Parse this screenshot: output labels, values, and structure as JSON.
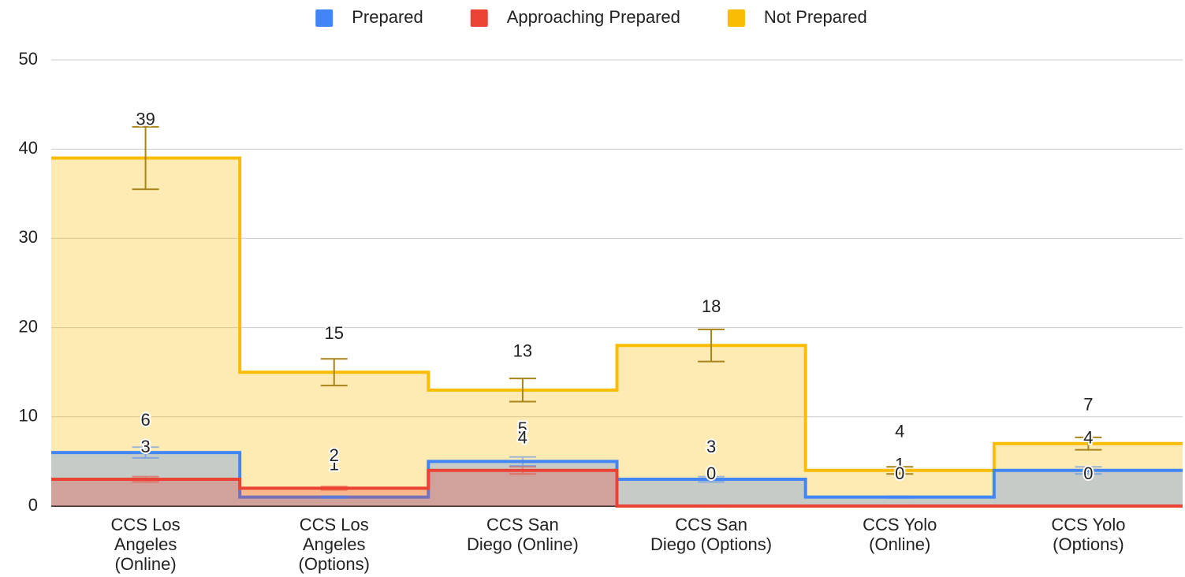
{
  "chart_data": {
    "type": "stepped-area",
    "categories": [
      [
        "CCS Los",
        "Angeles",
        "(Online)"
      ],
      [
        "CCS Los",
        "Angeles",
        "(Options)"
      ],
      [
        "CCS San",
        "Diego (Online)"
      ],
      [
        "CCS San",
        "Diego (Options)"
      ],
      [
        "CCS Yolo",
        "(Online)"
      ],
      [
        "CCS Yolo",
        "(Options)"
      ]
    ],
    "series": [
      {
        "name": "Prepared",
        "color": "#4285f4",
        "values": [
          6,
          1,
          5,
          3,
          1,
          4
        ],
        "errors": [
          0.6,
          0.1,
          0.5,
          0.3,
          0.1,
          0.4
        ]
      },
      {
        "name": "Approaching Prepared",
        "color": "#ea4335",
        "values": [
          3,
          2,
          4,
          0,
          0,
          0
        ],
        "errors": [
          0.3,
          0.2,
          0.4,
          0,
          0,
          0
        ]
      },
      {
        "name": "Not Prepared",
        "color": "#fbbc04",
        "values": [
          39,
          15,
          13,
          18,
          4,
          7
        ],
        "errors": [
          3.5,
          1.5,
          1.3,
          1.8,
          0.4,
          0.7
        ]
      }
    ],
    "ylim": [
      0,
      50
    ],
    "yticks": [
      0,
      10,
      20,
      30,
      40,
      50
    ],
    "grid": true,
    "legend": "top"
  }
}
